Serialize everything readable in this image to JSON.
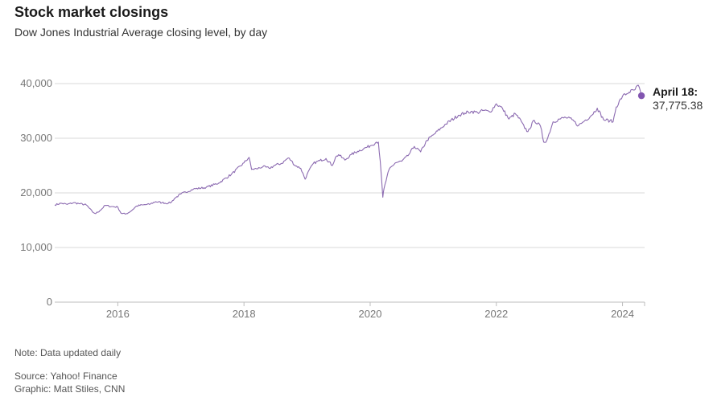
{
  "header": {
    "title": "Stock market closings",
    "subtitle": "Dow Jones Industrial Average closing level, by day"
  },
  "footer": {
    "note": "Note: Data updated daily",
    "source": "Source: Yahoo! Finance",
    "graphic": "Graphic: Matt Stiles, CNN"
  },
  "colors": {
    "line": "#8c6bb1",
    "marker": "#8255b0",
    "grid": "#d9d9d9",
    "axis_text": "#777777"
  },
  "chart_data": {
    "type": "line",
    "title": "Stock market closings",
    "subtitle": "Dow Jones Industrial Average closing level, by day",
    "xlabel": "",
    "ylabel": "",
    "xlim": [
      2015.0,
      2024.35
    ],
    "ylim": [
      0,
      40000
    ],
    "grid": true,
    "x_ticks": [
      2016,
      2018,
      2020,
      2022,
      2024
    ],
    "x_tick_labels": [
      "2016",
      "2018",
      "2020",
      "2022",
      "2024"
    ],
    "y_ticks": [
      0,
      10000,
      20000,
      30000,
      40000
    ],
    "y_tick_labels": [
      "0",
      "10,000",
      "20,000",
      "30,000",
      "40,000"
    ],
    "annotation": {
      "label": "April 18:",
      "value": "37,775.38",
      "x": 2024.3,
      "y": 37775.38
    },
    "series": [
      {
        "name": "Dow Jones Industrial Average",
        "x": [
          2015.0,
          2015.1,
          2015.2,
          2015.3,
          2015.4,
          2015.5,
          2015.6,
          2015.65,
          2015.72,
          2015.8,
          2015.9,
          2016.0,
          2016.05,
          2016.12,
          2016.2,
          2016.3,
          2016.4,
          2016.5,
          2016.6,
          2016.7,
          2016.8,
          2016.85,
          2016.9,
          2017.0,
          2017.2,
          2017.4,
          2017.6,
          2017.8,
          2018.0,
          2018.08,
          2018.12,
          2018.2,
          2018.3,
          2018.4,
          2018.5,
          2018.6,
          2018.7,
          2018.75,
          2018.8,
          2018.9,
          2018.97,
          2019.0,
          2019.1,
          2019.2,
          2019.3,
          2019.4,
          2019.45,
          2019.5,
          2019.6,
          2019.7,
          2019.8,
          2019.9,
          2020.0,
          2020.1,
          2020.13,
          2020.16,
          2020.2,
          2020.22,
          2020.3,
          2020.4,
          2020.5,
          2020.6,
          2020.7,
          2020.8,
          2020.9,
          2021.0,
          2021.2,
          2021.4,
          2021.5,
          2021.6,
          2021.7,
          2021.8,
          2021.9,
          2022.0,
          2022.1,
          2022.2,
          2022.3,
          2022.4,
          2022.45,
          2022.5,
          2022.6,
          2022.7,
          2022.75,
          2022.8,
          2022.9,
          2023.0,
          2023.1,
          2023.2,
          2023.3,
          2023.4,
          2023.5,
          2023.6,
          2023.7,
          2023.8,
          2023.85,
          2023.9,
          2024.0,
          2024.1,
          2024.2,
          2024.25,
          2024.3
        ],
        "y": [
          17800,
          18100,
          17900,
          18200,
          18000,
          17800,
          16500,
          16200,
          16800,
          17700,
          17500,
          17400,
          16300,
          16100,
          16600,
          17600,
          17800,
          17900,
          18400,
          18200,
          18100,
          18300,
          19000,
          19800,
          20700,
          21000,
          21800,
          23400,
          25500,
          26500,
          24300,
          24400,
          24800,
          24500,
          25100,
          25400,
          26400,
          25900,
          25100,
          24500,
          22500,
          23400,
          25400,
          25900,
          26300,
          25000,
          26500,
          27000,
          26000,
          27000,
          27600,
          28100,
          28600,
          29300,
          29300,
          25800,
          19200,
          20800,
          24300,
          25500,
          25800,
          26800,
          28500,
          27500,
          29600,
          30600,
          32600,
          34200,
          34600,
          34900,
          34700,
          35100,
          34800,
          36300,
          35400,
          33500,
          34500,
          33000,
          31800,
          31200,
          33300,
          32200,
          29300,
          29600,
          33000,
          33500,
          33800,
          33400,
          32300,
          33200,
          34100,
          35500,
          33400,
          33200,
          33000,
          35700,
          37700,
          38400,
          38900,
          39700,
          37775.38
        ]
      }
    ]
  }
}
